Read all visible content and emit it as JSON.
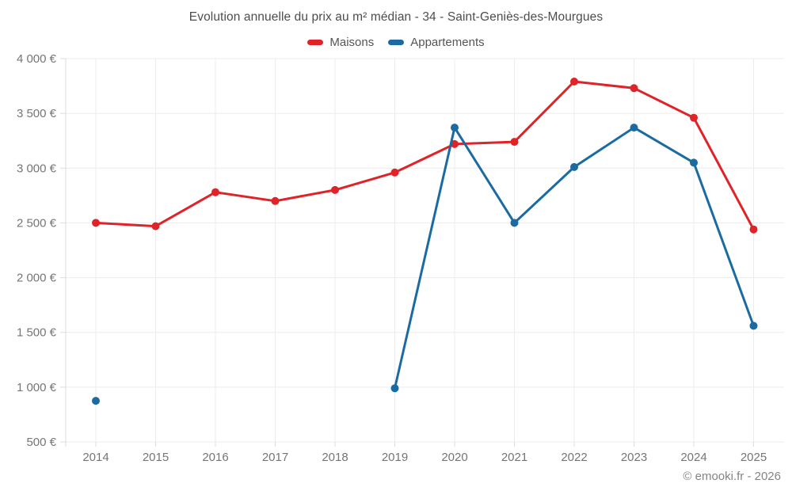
{
  "header": {
    "title": "Evolution annuelle du prix au m² médian - 34 - Saint-Geniès-des-Mourgues"
  },
  "footer": {
    "credit": "© emooki.fr - 2026"
  },
  "chart_data": {
    "type": "line",
    "title": "Evolution annuelle du prix au m² médian - 34 - Saint-Geniès-des-Mourgues",
    "categories": [
      "2014",
      "2015",
      "2016",
      "2017",
      "2018",
      "2019",
      "2020",
      "2021",
      "2022",
      "2023",
      "2024",
      "2025"
    ],
    "series": [
      {
        "name": "Maisons",
        "color": "#e02229",
        "values": [
          2500,
          2470,
          2780,
          2700,
          2800,
          2960,
          3220,
          3240,
          3790,
          3730,
          3460,
          2440
        ]
      },
      {
        "name": "Appartements",
        "color": "#1b6ba3",
        "values": [
          875,
          null,
          null,
          null,
          null,
          990,
          3370,
          2500,
          3010,
          3370,
          3050,
          1560
        ]
      }
    ],
    "ylim": [
      500,
      4000
    ],
    "y_tick_step": 500,
    "y_tick_suffix": "€",
    "grid": true,
    "legend_position": "top",
    "grid_color": "#ececec",
    "marker_radius": 5,
    "line_width": 3
  }
}
